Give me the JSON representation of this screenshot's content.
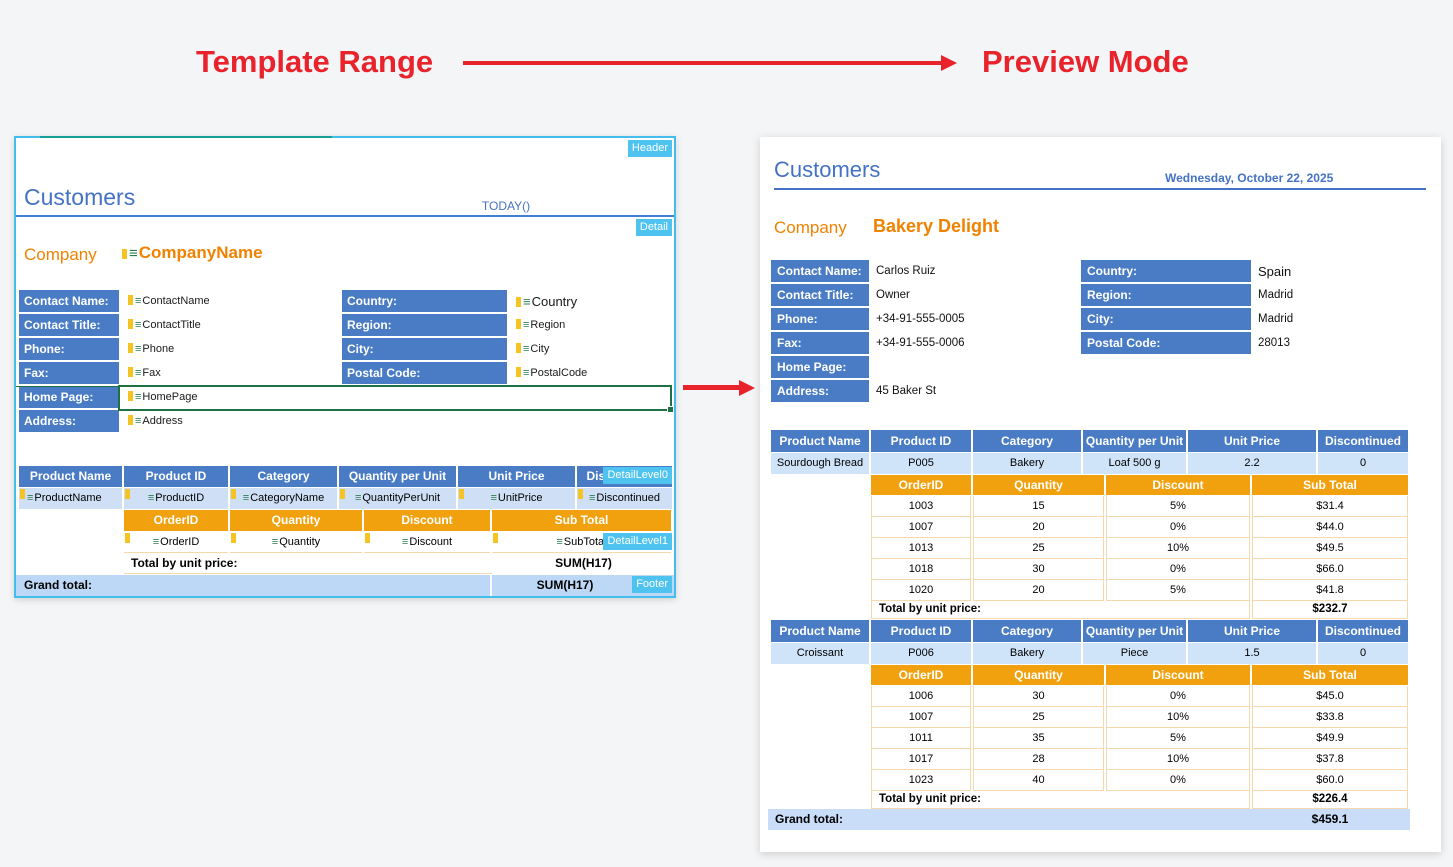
{
  "colors": {
    "accent_red": "#e8232b",
    "header_blue": "#4a7cc5",
    "title_blue": "#4472c4",
    "orange_header": "#f2a10e",
    "orange_text": "#f08200",
    "tag_cyan": "#4fc3f0",
    "panel_border_cyan": "#45bdec",
    "light_blue_row": "#cfe3f9",
    "grand_total_bg": "#c9ddf8",
    "selection_green": "#1e7145"
  },
  "icons": {
    "field_list": "≡"
  },
  "annotations": {
    "left_label": "Template Range",
    "right_label": "Preview Mode"
  },
  "template": {
    "tags": {
      "header": "Header",
      "detail": "Detail",
      "detail_level0": "DetailLevel0",
      "detail_level1": "DetailLevel1",
      "footer": "Footer"
    },
    "title": "Customers",
    "date_formula": "TODAY()",
    "company_label": "Company",
    "company_field": "CompanyName",
    "contact_left": [
      {
        "label": "Contact Name:",
        "field": "ContactName"
      },
      {
        "label": "Contact Title:",
        "field": "ContactTitle"
      },
      {
        "label": "Phone:",
        "field": "Phone"
      },
      {
        "label": "Fax:",
        "field": "Fax"
      },
      {
        "label": "Home Page:",
        "field": "HomePage"
      },
      {
        "label": "Address:",
        "field": "Address"
      }
    ],
    "contact_right": [
      {
        "label": "Country:",
        "field": "Country"
      },
      {
        "label": "Region:",
        "field": "Region"
      },
      {
        "label": "City:",
        "field": "City"
      },
      {
        "label": "Postal Code:",
        "field": "PostalCode"
      }
    ],
    "product_headers": [
      "Product Name",
      "Product ID",
      "Category",
      "Quantity per Unit",
      "Unit Price",
      "Discontinued"
    ],
    "product_fields": [
      "ProductName",
      "ProductID",
      "CategoryName",
      "QuantityPerUnit",
      "UnitPrice",
      "Discontinued"
    ],
    "order_headers": [
      "OrderID",
      "Quantity",
      "Discount",
      "Sub Total"
    ],
    "order_fields": [
      "OrderID",
      "Quantity",
      "Discount",
      "SubTotal"
    ],
    "total_label": "Total by unit price:",
    "total_formula": "SUM(H17)",
    "grand_total_label": "Grand total:",
    "grand_total_formula": "SUM(H17)"
  },
  "preview": {
    "title": "Customers",
    "date": "Wednesday, October 22, 2025",
    "company_label": "Company",
    "company_name": "Bakery Delight",
    "contact_left": [
      {
        "label": "Contact Name:",
        "value": "Carlos Ruiz"
      },
      {
        "label": "Contact Title:",
        "value": "Owner"
      },
      {
        "label": "Phone:",
        "value": "+34-91-555-0005"
      },
      {
        "label": "Fax:",
        "value": "+34-91-555-0006"
      },
      {
        "label": "Home Page:",
        "value": ""
      },
      {
        "label": "Address:",
        "value": "45 Baker St"
      }
    ],
    "contact_right": [
      {
        "label": "Country:",
        "value": "Spain"
      },
      {
        "label": "Region:",
        "value": "Madrid"
      },
      {
        "label": "City:",
        "value": "Madrid"
      },
      {
        "label": "Postal Code:",
        "value": "28013"
      }
    ],
    "product_headers": [
      "Product Name",
      "Product ID",
      "Category",
      "Quantity per Unit",
      "Unit Price",
      "Discontinued"
    ],
    "order_headers": [
      "OrderID",
      "Quantity",
      "Discount",
      "Sub Total"
    ],
    "total_label": "Total by unit price:",
    "products": [
      {
        "name": "Sourdough Bread",
        "id": "P005",
        "category": "Bakery",
        "quantity_per_unit": "Loaf 500 g",
        "unit_price": "2.2",
        "discontinued": "0",
        "orders": [
          [
            "1003",
            "15",
            "5%",
            "$31.4"
          ],
          [
            "1007",
            "20",
            "0%",
            "$44.0"
          ],
          [
            "1013",
            "25",
            "10%",
            "$49.5"
          ],
          [
            "1018",
            "30",
            "0%",
            "$66.0"
          ],
          [
            "1020",
            "20",
            "5%",
            "$41.8"
          ]
        ],
        "total": "$232.7"
      },
      {
        "name": "Croissant",
        "id": "P006",
        "category": "Bakery",
        "quantity_per_unit": "Piece",
        "unit_price": "1.5",
        "discontinued": "0",
        "orders": [
          [
            "1006",
            "30",
            "0%",
            "$45.0"
          ],
          [
            "1007",
            "25",
            "10%",
            "$33.8"
          ],
          [
            "1011",
            "35",
            "5%",
            "$49.9"
          ],
          [
            "1017",
            "28",
            "10%",
            "$37.8"
          ],
          [
            "1023",
            "40",
            "0%",
            "$60.0"
          ]
        ],
        "total": "$226.4"
      }
    ],
    "grand_total_label": "Grand total:",
    "grand_total_value": "$459.1"
  }
}
